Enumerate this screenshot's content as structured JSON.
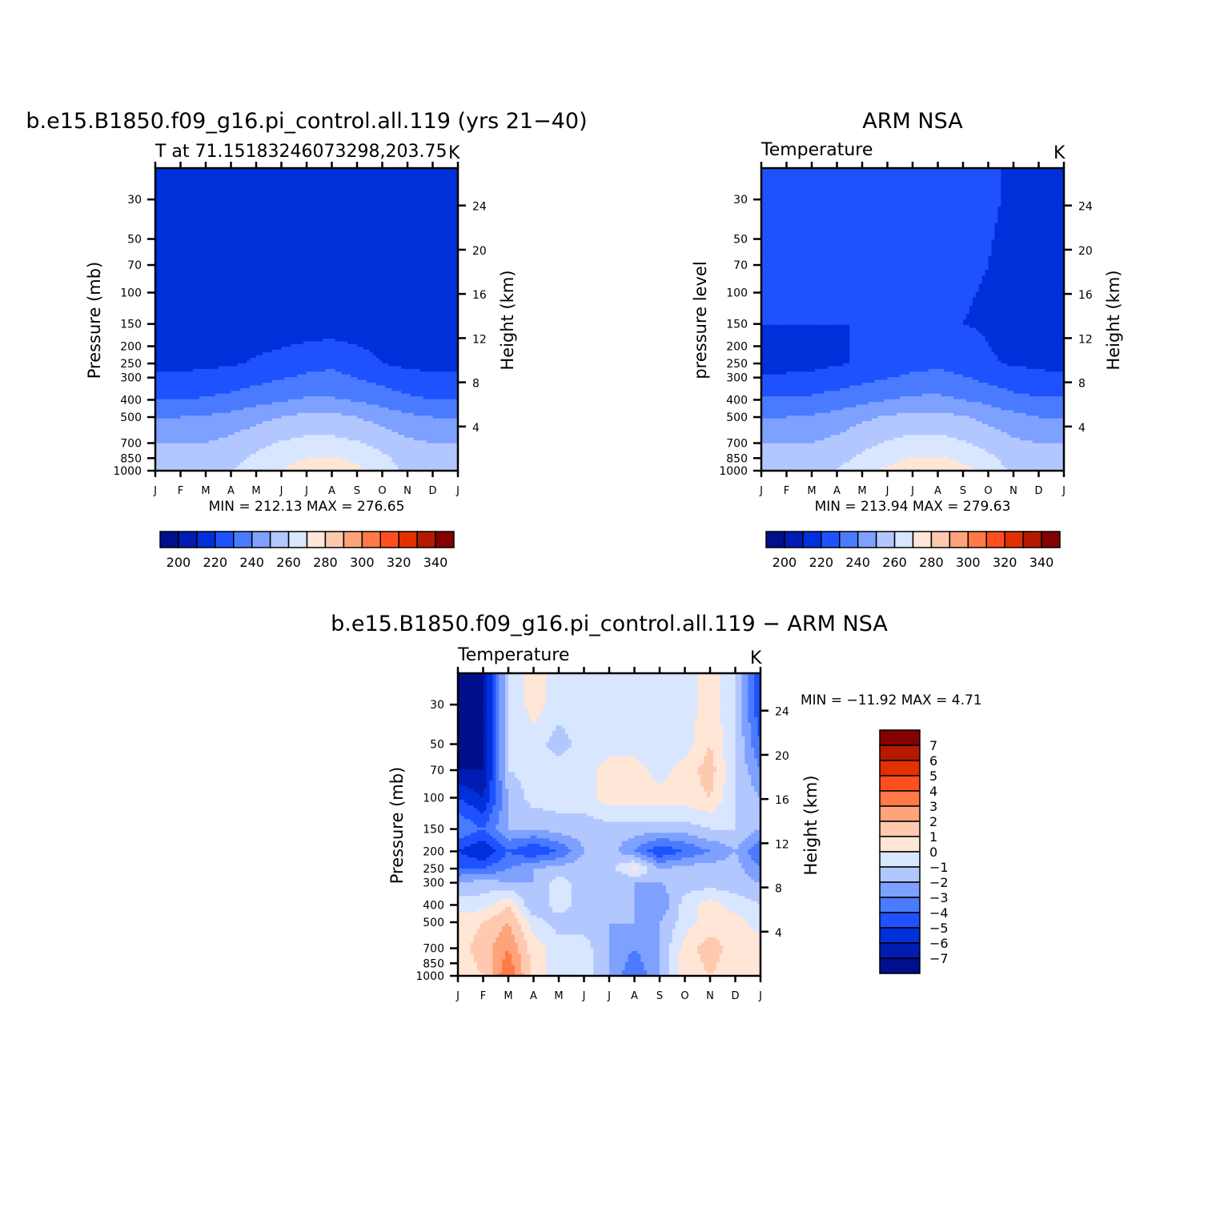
{
  "palette": {
    "abs": [
      "#000f8c",
      "#001cb3",
      "#0030d9",
      "#1f52ff",
      "#4a7bff",
      "#7ea1ff",
      "#b3c7ff",
      "#d9e6ff",
      "#ffe6d6",
      "#ffc9b0",
      "#ffa37a",
      "#ff7a47",
      "#ff4f1f",
      "#e33000",
      "#b51a00",
      "#850000"
    ],
    "diff": [
      "#000f8c",
      "#001cb3",
      "#0030d9",
      "#1f52ff",
      "#4a7bff",
      "#7ea1ff",
      "#b3c7ff",
      "#d9e6ff",
      "#ffe6d6",
      "#ffc9b0",
      "#ffa37a",
      "#ff7a47",
      "#ff4f1f",
      "#e33000",
      "#b51a00",
      "#850000"
    ]
  },
  "panels": [
    {
      "id": "model",
      "title": "b.e15.B1850.f09_g16.pi_control.all.119 (yrs 21-40)",
      "subtitle_left": "T at 71.15183246073298,203.75",
      "subtitle_right": "K",
      "ylabel_left": "Pressure (mb)",
      "ylabel_right": "Height (km)",
      "stats": "MIN = 212.13 MAX = 276.65",
      "colorbar_labels": [
        "200",
        "220",
        "240",
        "260",
        "280",
        "300",
        "320",
        "340"
      ]
    },
    {
      "id": "obs",
      "title": "ARM NSA",
      "subtitle_left": "Temperature",
      "subtitle_right": "K",
      "ylabel_left": "pressure level",
      "ylabel_right": "Height (km)",
      "stats": "MIN = 213.94 MAX = 279.63",
      "colorbar_labels": [
        "200",
        "220",
        "240",
        "260",
        "280",
        "300",
        "320",
        "340"
      ]
    },
    {
      "id": "diff",
      "title": "b.e15.B1850.f09_g16.pi_control.all.119 - ARM NSA",
      "subtitle_left": "Temperature",
      "subtitle_right": "K",
      "ylabel_left": "Pressure (mb)",
      "ylabel_right": "Height (km)",
      "stats": "MIN = -11.92 MAX =    4.71",
      "colorbar_labels": [
        "7",
        "6",
        "5",
        "4",
        "3",
        "2",
        "1",
        "0",
        "-1",
        "-2",
        "-3",
        "-4",
        "-5",
        "-6",
        "-7"
      ]
    }
  ],
  "chart_data": [
    {
      "type": "heatmap",
      "title": "b.e15.B1850.f09_g16.pi_control.all.119 (yrs 21-40)",
      "x_categories": [
        "J",
        "F",
        "M",
        "A",
        "M",
        "J",
        "J",
        "A",
        "S",
        "O",
        "N",
        "D",
        "J"
      ],
      "y_pressure_ticks": [
        30,
        50,
        70,
        100,
        150,
        200,
        250,
        300,
        400,
        500,
        700,
        850,
        1000
      ],
      "y_height_ticks": [
        4,
        8,
        12,
        16,
        20,
        24
      ],
      "levels": [
        190,
        200,
        210,
        220,
        230,
        240,
        250,
        260,
        270,
        280,
        290,
        300,
        310,
        320,
        330,
        340,
        350
      ],
      "values_K": [
        [
          216,
          216,
          216,
          216,
          216,
          216,
          216,
          216,
          216,
          216,
          216,
          216,
          216
        ],
        [
          218,
          218,
          218,
          216,
          215,
          215,
          215,
          215,
          215,
          216,
          218,
          218,
          218
        ],
        [
          216,
          216,
          216,
          216,
          215,
          215,
          215,
          215,
          215,
          216,
          216,
          216,
          216
        ],
        [
          217,
          217,
          218,
          219,
          221,
          223,
          226,
          228,
          224,
          220,
          218,
          217,
          217
        ],
        [
          230,
          230,
          231,
          233,
          236,
          239,
          241,
          241,
          239,
          236,
          232,
          230,
          230
        ],
        [
          240,
          240,
          241,
          243,
          247,
          250,
          253,
          253,
          250,
          246,
          242,
          240,
          240
        ],
        [
          250,
          250,
          250,
          253,
          257,
          261,
          263,
          263,
          261,
          257,
          252,
          250,
          250
        ],
        [
          252,
          252,
          253,
          257,
          262,
          266,
          270,
          271,
          268,
          262,
          256,
          252,
          252
        ],
        [
          253,
          253,
          255,
          260,
          265,
          270,
          276,
          276,
          272,
          265,
          258,
          254,
          253
        ]
      ],
      "values_y_mb": [
        30,
        70,
        150,
        250,
        400,
        500,
        700,
        850,
        1000
      ],
      "min": 212.13,
      "max": 276.65
    },
    {
      "type": "heatmap",
      "title": "ARM NSA",
      "x_categories": [
        "J",
        "F",
        "M",
        "A",
        "M",
        "J",
        "J",
        "A",
        "S",
        "O",
        "N",
        "D",
        "J"
      ],
      "y_pressure_ticks": [
        30,
        50,
        70,
        100,
        150,
        200,
        250,
        300,
        400,
        500,
        700,
        850,
        1000
      ],
      "y_height_ticks": [
        4,
        8,
        12,
        16,
        20,
        24
      ],
      "levels": [
        190,
        200,
        210,
        220,
        230,
        240,
        250,
        260,
        270,
        280,
        290,
        300,
        310,
        320,
        330,
        340,
        350
      ],
      "values_K": [
        [
          221,
          221,
          221,
          221,
          221,
          221,
          221,
          221,
          221,
          221,
          219,
          218,
          218
        ],
        [
          221,
          221,
          221,
          221,
          221,
          221,
          221,
          221,
          221,
          220,
          218,
          218,
          219
        ],
        [
          220,
          220,
          220,
          220,
          220,
          220,
          220,
          220,
          220,
          219,
          217,
          217,
          218
        ],
        [
          216,
          216,
          217,
          219,
          221,
          223,
          226,
          228,
          225,
          221,
          219,
          218,
          216
        ],
        [
          231,
          231,
          232,
          234,
          237,
          240,
          242,
          242,
          240,
          237,
          233,
          231,
          231
        ],
        [
          240,
          240,
          241,
          244,
          248,
          251,
          253,
          253,
          251,
          247,
          243,
          240,
          240
        ],
        [
          250,
          250,
          250,
          253,
          257,
          261,
          264,
          264,
          261,
          257,
          252,
          250,
          250
        ],
        [
          252,
          252,
          253,
          257,
          262,
          266,
          271,
          271,
          268,
          262,
          256,
          252,
          252
        ],
        [
          253,
          253,
          255,
          260,
          266,
          272,
          278,
          278,
          273,
          266,
          258,
          254,
          253
        ]
      ],
      "values_y_mb": [
        30,
        70,
        150,
        250,
        400,
        500,
        700,
        850,
        1000
      ],
      "min": 213.94,
      "max": 279.63
    },
    {
      "type": "heatmap",
      "title": "b.e15.B1850.f09_g16.pi_control.all.119 - ARM NSA",
      "x_categories": [
        "J",
        "F",
        "M",
        "A",
        "M",
        "J",
        "J",
        "A",
        "S",
        "O",
        "N",
        "D",
        "J"
      ],
      "y_pressure_ticks": [
        30,
        50,
        70,
        100,
        150,
        200,
        250,
        300,
        400,
        500,
        700,
        850,
        1000
      ],
      "y_height_ticks": [
        4,
        8,
        12,
        16,
        20,
        24
      ],
      "levels": [
        -8,
        -7,
        -6,
        -5,
        -4,
        -3,
        -2,
        -1,
        0,
        1,
        2,
        3,
        4,
        5,
        6,
        7,
        8
      ],
      "values_K": [
        [
          -10,
          -7,
          -1,
          0.5,
          -0.5,
          -0.5,
          -0.5,
          -0.5,
          -0.5,
          -0.5,
          0.5,
          -1,
          -5
        ],
        [
          -10,
          -7,
          -1,
          -0.5,
          -1.5,
          -0.5,
          -0.5,
          -0.5,
          -0.5,
          -0.5,
          1,
          -1,
          -4
        ],
        [
          -7,
          -7,
          -1,
          -0.5,
          -0.5,
          -0.5,
          0.5,
          0.5,
          -0.5,
          0.5,
          1.5,
          -1,
          -3
        ],
        [
          -5,
          -6,
          -2,
          -0.5,
          -0.5,
          -0.5,
          0.5,
          0.5,
          0.5,
          0.5,
          1,
          -1,
          -2
        ],
        [
          -3,
          -4,
          -2,
          -2,
          -1.5,
          -1.5,
          -1.5,
          -1.5,
          -1.5,
          -1.5,
          -1,
          -1,
          -2
        ],
        [
          -5,
          -6,
          -4,
          -5,
          -4,
          -2,
          -1.5,
          -3,
          -5,
          -4,
          -3,
          -2,
          -4
        ],
        [
          -4,
          -4,
          -3,
          -2,
          -1.5,
          -1.5,
          -1.5,
          0.5,
          -2,
          -1.5,
          -1.5,
          -1.5,
          -3
        ],
        [
          -2,
          -1.5,
          -2,
          -2,
          -0.5,
          -1.5,
          -2,
          -2,
          -2,
          -1.5,
          -1.5,
          -1.5,
          -2
        ],
        [
          -0.5,
          -0.5,
          1,
          -2,
          -0.5,
          -1.5,
          -2,
          -2,
          -3,
          -0.5,
          0.5,
          -0.5,
          -1
        ],
        [
          0.5,
          1,
          2,
          -0.5,
          -1.5,
          -1.5,
          -2,
          -2,
          -2,
          -0.5,
          0.5,
          0.5,
          -0.5
        ],
        [
          0.5,
          1.5,
          3,
          0.5,
          -0.5,
          -0.5,
          -2,
          -3,
          -2,
          0.5,
          1.5,
          0.5,
          0.5
        ],
        [
          0.5,
          1,
          4,
          0.5,
          -0.5,
          -0.5,
          -2,
          -4,
          -2,
          0.5,
          1,
          0.5,
          0.5
        ]
      ],
      "values_y_mb": [
        30,
        50,
        70,
        100,
        150,
        200,
        250,
        300,
        400,
        500,
        700,
        1000
      ],
      "min": -11.92,
      "max": 4.71
    }
  ]
}
